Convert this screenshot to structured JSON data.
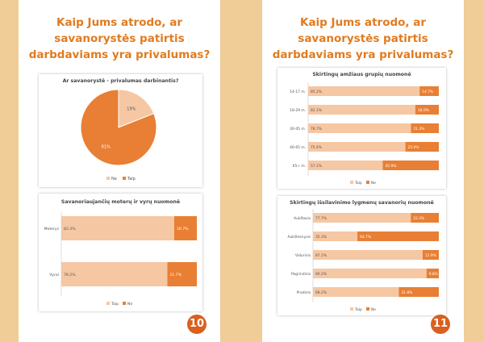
{
  "colors": {
    "taip": "#e87f34",
    "ne": "#f6c7a3",
    "accent": "#e07b1f",
    "badge": "#d9601e"
  },
  "page_left": {
    "title_lines": [
      "Kaip Jums atrodo, ar",
      "savanorystės patirtis",
      "darbdaviams yra privalumas?"
    ],
    "page_number": "10"
  },
  "page_right": {
    "title_lines": [
      "Kaip Jums atrodo, ar",
      "savanorystės patirtis",
      "darbdaviams yra privalumas?"
    ],
    "page_number": "11"
  },
  "chart_data": [
    {
      "type": "pie",
      "title": "Ar savanorystė - privalumas darbinantis?",
      "categories": [
        "Ne",
        "Taip"
      ],
      "values": [
        19,
        81
      ],
      "labels": [
        "19%",
        "81%"
      ],
      "legend": "bottom"
    },
    {
      "type": "bar",
      "orientation": "horizontal-stacked-100",
      "title": "Savanoriaujančių moterų ir vyrų nuomonė",
      "categories": [
        "Moterys",
        "Vyrai"
      ],
      "series": [
        {
          "name": "Taip",
          "values": [
            83.3,
            78.2
          ],
          "labels": [
            "83.3%",
            "78.2%"
          ]
        },
        {
          "name": "Ne",
          "values": [
            16.7,
            21.7
          ],
          "labels": [
            "16.7%",
            "21.7%"
          ]
        }
      ],
      "legend": "bottom"
    },
    {
      "type": "bar",
      "orientation": "horizontal-stacked-100",
      "title": "Skirtingų amžiaus grupių nuomonė",
      "categories": [
        "14-17 m.",
        "18-29 m.",
        "30-45 m.",
        "46-65 m.",
        "65+ m."
      ],
      "series": [
        {
          "name": "Taip",
          "values": [
            85.2,
            82.1,
            78.7,
            75.4,
            57.1
          ],
          "labels": [
            "85.2%",
            "82.1%",
            "78.7%",
            "75.4%",
            "57.1%"
          ]
        },
        {
          "name": "Ne",
          "values": [
            14.7,
            18.0,
            21.3,
            25.9,
            42.9
          ],
          "labels": [
            "14.7%",
            "18.0%",
            "21.3%",
            "25.9%",
            "42.9%"
          ]
        }
      ],
      "legend": "bottom"
    },
    {
      "type": "bar",
      "orientation": "horizontal-stacked-100",
      "title": "Skirtingų išsilavinimo lygmenų savanorių nuomonė",
      "categories": [
        "Aukštasis",
        "Aukštesnysis",
        "Vidurinis",
        "Pagrindinis",
        "Pradinis"
      ],
      "series": [
        {
          "name": "Taip",
          "values": [
            77.7,
            35.3,
            87.1,
            90.2,
            68.2
          ],
          "labels": [
            "77.7%",
            "35.3%",
            "87.1%",
            "90.2%",
            "68.2%"
          ]
        },
        {
          "name": "Ne",
          "values": [
            22.3,
            64.7,
            12.9,
            9.8,
            31.8
          ],
          "labels": [
            "22.3%",
            "64.7%",
            "12.9%",
            "9.8%",
            "31.8%"
          ]
        }
      ],
      "legend": "bottom"
    }
  ]
}
